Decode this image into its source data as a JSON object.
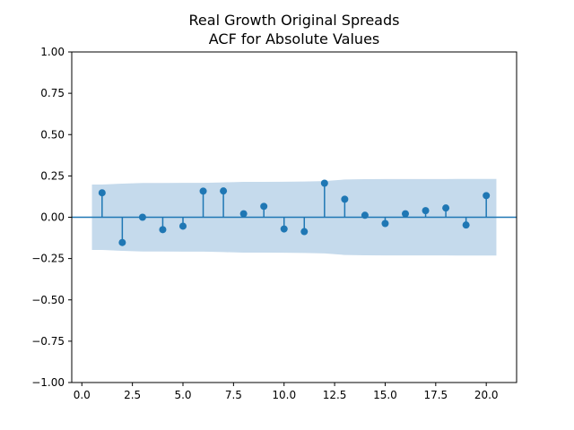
{
  "chart_data": {
    "type": "scatter",
    "title_lines": [
      "Real Growth Original Spreads",
      "ACF for Absolute Values"
    ],
    "xlim": [
      -0.5,
      21.5
    ],
    "ylim": [
      -1.0,
      1.0
    ],
    "xticks": [
      0.0,
      2.5,
      5.0,
      7.5,
      10.0,
      12.5,
      15.0,
      17.5,
      20.0
    ],
    "xtick_labels": [
      "0.0",
      "2.5",
      "5.0",
      "7.5",
      "10.0",
      "12.5",
      "15.0",
      "17.5",
      "20.0"
    ],
    "yticks": [
      1.0,
      0.75,
      0.5,
      0.25,
      0.0,
      -0.25,
      -0.5,
      -0.75,
      -1.0
    ],
    "ytick_labels": [
      "1.00",
      "0.75",
      "0.50",
      "0.25",
      "0.00",
      "−0.25",
      "−0.50",
      "−0.75",
      "−1.00"
    ],
    "lags": [
      1,
      2,
      3,
      4,
      5,
      6,
      7,
      8,
      9,
      10,
      11,
      12,
      13,
      14,
      15,
      16,
      17,
      18,
      19,
      20
    ],
    "acf": [
      0.148,
      -0.153,
      0.0,
      -0.075,
      -0.054,
      0.158,
      0.159,
      0.021,
      0.066,
      -0.071,
      -0.087,
      0.206,
      0.109,
      0.012,
      -0.038,
      0.021,
      0.04,
      0.056,
      -0.047,
      0.131
    ],
    "confidence_band": {
      "x": [
        0.5,
        1,
        2,
        3,
        4,
        5,
        6,
        7,
        8,
        9,
        10,
        11,
        12,
        13,
        14,
        15,
        16,
        17,
        18,
        19,
        20,
        20.5
      ],
      "upper": [
        0.198,
        0.198,
        0.203,
        0.207,
        0.207,
        0.208,
        0.208,
        0.211,
        0.214,
        0.214,
        0.215,
        0.216,
        0.219,
        0.228,
        0.23,
        0.231,
        0.231,
        0.231,
        0.231,
        0.232,
        0.232,
        0.232
      ],
      "lower": [
        -0.198,
        -0.198,
        -0.203,
        -0.207,
        -0.207,
        -0.208,
        -0.208,
        -0.211,
        -0.214,
        -0.214,
        -0.215,
        -0.216,
        -0.219,
        -0.228,
        -0.23,
        -0.231,
        -0.231,
        -0.231,
        -0.231,
        -0.232,
        -0.232,
        -0.232
      ]
    },
    "grid": false,
    "colors": {
      "marker": "#1f77b4",
      "band": "#c5daec",
      "zero_line": "#1f77b4",
      "axes": "#000000"
    }
  }
}
